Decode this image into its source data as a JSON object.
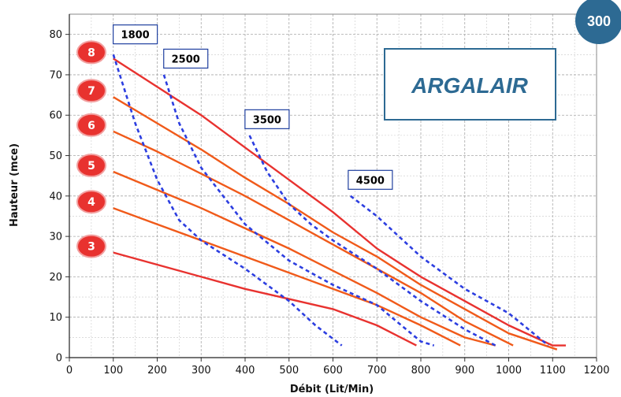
{
  "chart_data": {
    "type": "line",
    "xlabel": "Débit  (Lit/Min)",
    "ylabel": "Hauteur (mce)",
    "xlim": [
      0,
      1200
    ],
    "ylim": [
      0,
      85
    ],
    "x_ticks": [
      "0",
      "100",
      "200",
      "300",
      "400",
      "500",
      "600",
      "700",
      "800",
      "900",
      "1000",
      "1100",
      "1200"
    ],
    "y_ticks": [
      "0",
      "10",
      "20",
      "30",
      "40",
      "50",
      "60",
      "70",
      "80"
    ],
    "grid": true,
    "pressure_series": [
      {
        "name": "8",
        "color": "#e8322f",
        "points": [
          [
            100,
            74
          ],
          [
            200,
            67
          ],
          [
            300,
            60
          ],
          [
            400,
            52
          ],
          [
            500,
            44
          ],
          [
            600,
            36
          ],
          [
            700,
            27
          ],
          [
            800,
            20
          ],
          [
            900,
            14
          ],
          [
            1000,
            8
          ],
          [
            1100,
            3
          ],
          [
            1130,
            3
          ]
        ]
      },
      {
        "name": "7",
        "color": "#f05a1a",
        "points": [
          [
            100,
            64.5
          ],
          [
            200,
            58
          ],
          [
            300,
            51.5
          ],
          [
            400,
            44.5
          ],
          [
            500,
            38
          ],
          [
            600,
            31
          ],
          [
            700,
            25
          ],
          [
            800,
            18
          ],
          [
            900,
            12
          ],
          [
            1000,
            6
          ],
          [
            1110,
            2
          ]
        ]
      },
      {
        "name": "6",
        "color": "#f05a1a",
        "points": [
          [
            100,
            56
          ],
          [
            200,
            51
          ],
          [
            300,
            45.5
          ],
          [
            400,
            40
          ],
          [
            500,
            34
          ],
          [
            600,
            28
          ],
          [
            700,
            22
          ],
          [
            800,
            16
          ],
          [
            900,
            9
          ],
          [
            1010,
            3
          ]
        ]
      },
      {
        "name": "5",
        "color": "#f05a1a",
        "points": [
          [
            100,
            46
          ],
          [
            200,
            41.5
          ],
          [
            300,
            37
          ],
          [
            400,
            32
          ],
          [
            500,
            27
          ],
          [
            600,
            21.5
          ],
          [
            700,
            16
          ],
          [
            800,
            10
          ],
          [
            900,
            5
          ],
          [
            970,
            3
          ]
        ]
      },
      {
        "name": "4",
        "color": "#f05a1a",
        "points": [
          [
            100,
            37
          ],
          [
            200,
            33
          ],
          [
            300,
            29
          ],
          [
            400,
            25
          ],
          [
            500,
            21
          ],
          [
            600,
            17
          ],
          [
            700,
            13
          ],
          [
            800,
            8
          ],
          [
            890,
            3
          ]
        ]
      },
      {
        "name": "3",
        "color": "#e8322f",
        "points": [
          [
            100,
            26
          ],
          [
            200,
            23
          ],
          [
            300,
            20
          ],
          [
            400,
            17
          ],
          [
            500,
            14.5
          ],
          [
            600,
            12
          ],
          [
            700,
            8
          ],
          [
            790,
            3
          ]
        ]
      }
    ],
    "speed_series": [
      {
        "name": "1800",
        "color": "#2c3ee0",
        "points": [
          [
            100,
            75
          ],
          [
            150,
            58
          ],
          [
            200,
            44
          ],
          [
            250,
            34
          ],
          [
            300,
            29
          ],
          [
            400,
            22
          ],
          [
            500,
            14
          ],
          [
            560,
            8
          ],
          [
            620,
            3
          ]
        ]
      },
      {
        "name": "2500",
        "color": "#2c3ee0",
        "points": [
          [
            215,
            70
          ],
          [
            250,
            58
          ],
          [
            300,
            47
          ],
          [
            350,
            40
          ],
          [
            400,
            33
          ],
          [
            500,
            24
          ],
          [
            600,
            18
          ],
          [
            700,
            13
          ],
          [
            800,
            4
          ],
          [
            830,
            3
          ]
        ]
      },
      {
        "name": "3500",
        "color": "#2c3ee0",
        "points": [
          [
            410,
            55
          ],
          [
            450,
            46
          ],
          [
            500,
            38
          ],
          [
            550,
            33
          ],
          [
            600,
            29
          ],
          [
            700,
            22
          ],
          [
            800,
            14
          ],
          [
            900,
            7
          ],
          [
            970,
            3
          ]
        ]
      },
      {
        "name": "4500",
        "color": "#2c3ee0",
        "points": [
          [
            640,
            40
          ],
          [
            700,
            35
          ],
          [
            800,
            25
          ],
          [
            900,
            17
          ],
          [
            1000,
            11
          ],
          [
            1090,
            3
          ]
        ]
      }
    ],
    "speed_labels": [
      {
        "text": "1800",
        "x": 150,
        "y": 80
      },
      {
        "text": "2500",
        "x": 265,
        "y": 74
      },
      {
        "text": "3500",
        "x": 450,
        "y": 59
      },
      {
        "text": "4500",
        "x": 685,
        "y": 44
      }
    ],
    "pressure_badges": [
      {
        "text": "8",
        "y": 74
      },
      {
        "text": "7",
        "y": 64.5
      },
      {
        "text": "6",
        "y": 56
      },
      {
        "text": "5",
        "y": 46
      },
      {
        "text": "4",
        "y": 37
      },
      {
        "text": "3",
        "y": 26
      }
    ]
  },
  "logo": {
    "text": "ARGALAIR",
    "color": "#2d6a93"
  },
  "corner_badge": {
    "text": "300",
    "color": "#2d6a93"
  }
}
